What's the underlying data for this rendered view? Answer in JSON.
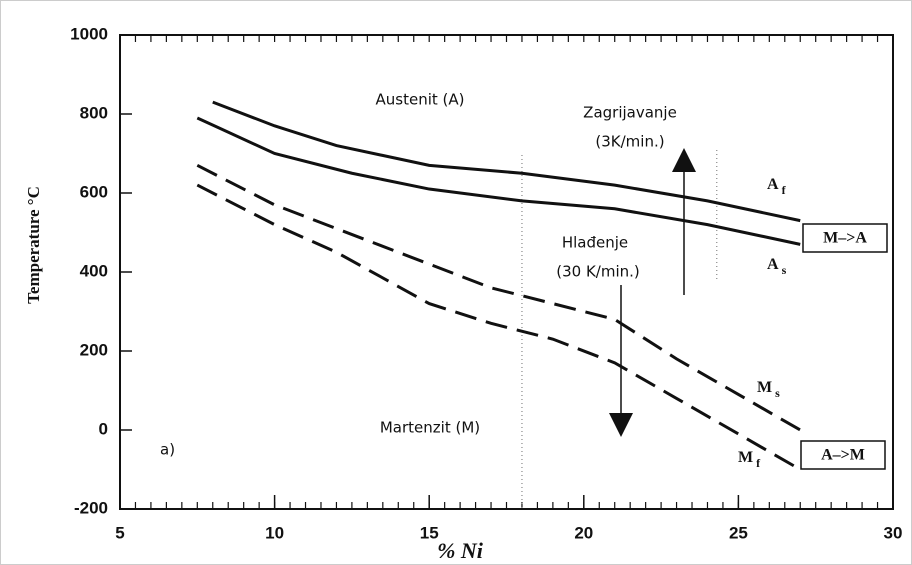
{
  "chart_data": {
    "type": "line",
    "xlabel": "% Ni",
    "ylabel": "Temperature °C",
    "xlim": [
      5,
      30
    ],
    "xticks": [
      5,
      10,
      15,
      20,
      25,
      30
    ],
    "ylim": [
      -200,
      1000
    ],
    "yticks": [
      -200,
      0,
      200,
      400,
      600,
      800,
      1000
    ],
    "minor_xtick_step": 0.5,
    "guides": [
      18,
      24.3
    ],
    "series": [
      {
        "label": "A",
        "label_sub": "f",
        "color": "#111111",
        "dashed": false,
        "x": [
          8,
          10,
          12,
          15,
          18,
          21,
          24,
          27
        ],
        "values": [
          830,
          770,
          720,
          670,
          650,
          620,
          580,
          530
        ]
      },
      {
        "label": "A",
        "label_sub": "s",
        "color": "#111111",
        "dashed": false,
        "x": [
          7.5,
          10,
          12.5,
          15,
          18,
          21,
          24,
          27
        ],
        "values": [
          790,
          700,
          650,
          610,
          580,
          560,
          520,
          470
        ]
      },
      {
        "label": "M",
        "label_sub": "s",
        "color": "#111111",
        "dashed": true,
        "x": [
          7.5,
          10,
          12,
          15,
          17,
          19,
          21,
          23,
          25,
          27
        ],
        "values": [
          670,
          570,
          510,
          420,
          360,
          320,
          280,
          180,
          90,
          0
        ]
      },
      {
        "label": "M",
        "label_sub": "f",
        "color": "#111111",
        "dashed": true,
        "x": [
          7.5,
          10,
          12,
          15,
          17,
          19,
          21,
          23,
          25,
          27
        ],
        "values": [
          620,
          520,
          450,
          320,
          270,
          230,
          170,
          80,
          -10,
          -100
        ]
      }
    ],
    "annotations": [
      "Austenit (A)",
      "Zagrijavanje",
      "(3K/min.)",
      "Hlađenje",
      "(30 K/min.)",
      "Martenzit (M)",
      "a)"
    ],
    "boxes": [
      "M–>A",
      "A–>M"
    ]
  }
}
